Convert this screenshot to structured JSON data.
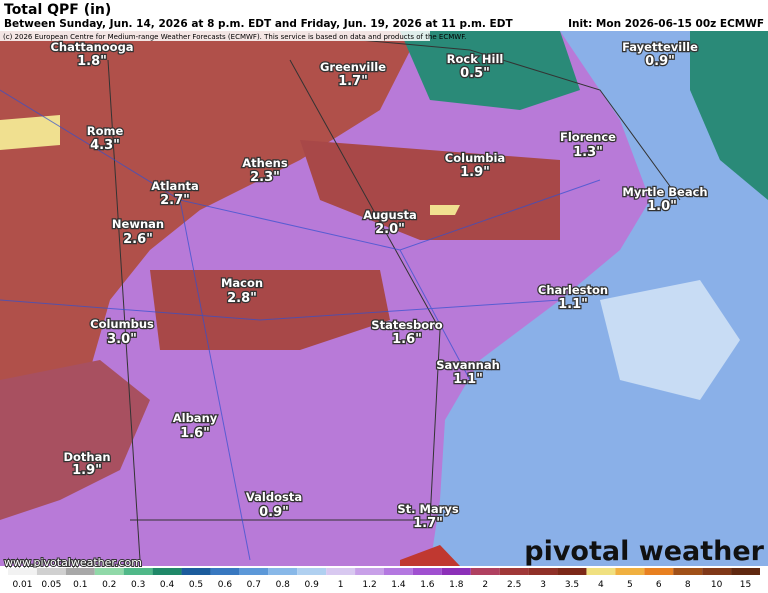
{
  "header": {
    "title": "Total QPF (in)",
    "subtitle": "Between Sunday, Jun. 14, 2026 at 8 p.m. EDT and Friday, Jun. 19, 2026 at 11 p.m. EDT",
    "init": "Init: Mon 2026-06-15 00z ECMWF",
    "copyright": "(c) 2026 European Centre for Medium-range Weather Forecasts (ECMWF). This service is based on data and products of the ECMWF."
  },
  "cities": [
    {
      "name": "Chattanooga",
      "value": "1.8\""
    },
    {
      "name": "Greenville",
      "value": "1.7\""
    },
    {
      "name": "Rock Hill",
      "value": "0.5\""
    },
    {
      "name": "Fayetteville",
      "value": "0.9\""
    },
    {
      "name": "Rome",
      "value": "4.3\""
    },
    {
      "name": "Athens",
      "value": "2.3\""
    },
    {
      "name": "Columbia",
      "value": "1.9\""
    },
    {
      "name": "Florence",
      "value": "1.3\""
    },
    {
      "name": "Atlanta",
      "value": "2.7\""
    },
    {
      "name": "Augusta",
      "value": "2.0\""
    },
    {
      "name": "Myrtle Beach",
      "value": "1.0\""
    },
    {
      "name": "Newnan",
      "value": "2.6\""
    },
    {
      "name": "Macon",
      "value": "2.8\""
    },
    {
      "name": "Charleston",
      "value": "1.1\""
    },
    {
      "name": "Columbus",
      "value": "3.0\""
    },
    {
      "name": "Statesboro",
      "value": "1.6\""
    },
    {
      "name": "Savannah",
      "value": "1.1\""
    },
    {
      "name": "Albany",
      "value": "1.6\""
    },
    {
      "name": "Dothan",
      "value": "1.9\""
    },
    {
      "name": "Valdosta",
      "value": "0.9\""
    },
    {
      "name": "St. Marys",
      "value": "1.7\""
    }
  ],
  "footer": {
    "website": "www.pivotalweather.com",
    "brand": "pivotal weather"
  },
  "colorbar": {
    "labels": [
      "0.01",
      "0.05",
      "0.1",
      "0.2",
      "0.3",
      "0.4",
      "0.5",
      "0.6",
      "0.7",
      "0.8",
      "0.9",
      "1",
      "1.2",
      "1.4",
      "1.6",
      "1.8",
      "2",
      "2.5",
      "3",
      "3.5",
      "4",
      "5",
      "6",
      "8",
      "10",
      "15"
    ],
    "colors": [
      "#f2f2f2",
      "#d0d0d0",
      "#a8a8a8",
      "#90d8a8",
      "#50b888",
      "#208868",
      "#1c5c9c",
      "#3878c0",
      "#5c98d8",
      "#88b8e8",
      "#b0d0f0",
      "#d8c8f0",
      "#c8a0e8",
      "#b478e0",
      "#a050d0",
      "#8c30b8",
      "#b04060",
      "#a03838",
      "#903028",
      "#7c2818",
      "#f0e080",
      "#f0b040",
      "#e88020",
      "#a05018",
      "#803818",
      "#602810"
    ]
  }
}
